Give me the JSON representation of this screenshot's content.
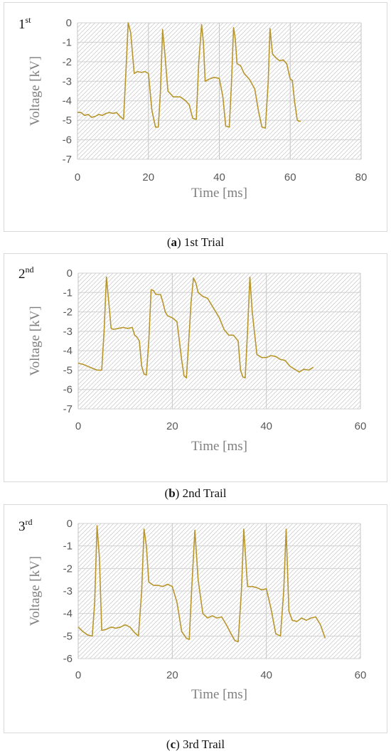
{
  "chart_data": [
    {
      "type": "line",
      "panel_label": "1",
      "panel_label_sup": "st",
      "xlabel": "Time [ms]",
      "ylabel": "Voltage [kV]",
      "xlim": [
        0,
        80
      ],
      "ylim": [
        -7,
        0
      ],
      "xticks": [
        "0",
        "20",
        "40",
        "60",
        "80"
      ],
      "yticks": [
        "0",
        "-1",
        "-2",
        "-3",
        "-4",
        "-5",
        "-6",
        "-7"
      ],
      "caption": {
        "letter": "a",
        "text": " 1st Trial"
      },
      "line_color": "#b8962c",
      "series": [
        {
          "x": [
            0,
            1,
            2,
            3,
            4,
            5,
            6,
            7,
            8,
            9,
            10,
            11,
            12,
            13,
            13.8,
            14.3,
            15,
            16,
            17,
            18,
            19,
            20,
            21,
            22,
            22.8,
            23.4,
            24,
            24.6,
            25.5,
            27,
            29,
            30.5,
            31.5,
            32.5,
            33.5,
            34.2,
            35,
            35.5,
            36,
            37,
            38.5,
            40,
            41,
            41.8,
            42.8,
            43.4,
            44,
            44.5,
            45,
            46,
            47,
            48.5,
            50,
            51,
            52,
            53,
            53.8,
            54.3,
            55,
            56,
            57,
            58,
            59,
            60,
            60.6,
            61.2,
            62,
            62.5,
            63
          ],
          "y": [
            -4.6,
            -4.6,
            -4.75,
            -4.7,
            -4.85,
            -4.8,
            -4.7,
            -4.75,
            -4.65,
            -4.6,
            -4.65,
            -4.6,
            -4.8,
            -4.95,
            -2.0,
            0,
            -0.5,
            -2.6,
            -2.5,
            -2.55,
            -2.5,
            -2.6,
            -4.5,
            -5.35,
            -5.35,
            -3.5,
            -0.35,
            -1.5,
            -3.5,
            -3.8,
            -3.8,
            -4.0,
            -4.2,
            -4.9,
            -4.95,
            -2.0,
            -0.1,
            -1.0,
            -3.0,
            -2.9,
            -2.8,
            -2.85,
            -3.8,
            -5.3,
            -5.35,
            -3.2,
            -0.25,
            -0.8,
            -2.1,
            -2.2,
            -2.6,
            -2.9,
            -3.4,
            -4.5,
            -5.35,
            -5.4,
            -3.0,
            -0.3,
            -1.6,
            -1.8,
            -1.95,
            -1.9,
            -2.1,
            -2.9,
            -2.95,
            -4.0,
            -5.0,
            -5.05,
            -5.05
          ]
        }
      ]
    },
    {
      "type": "line",
      "panel_label": "2",
      "panel_label_sup": "nd",
      "xlabel": "Time [ms]",
      "ylabel": "Voltage [kV]",
      "xlim": [
        0,
        60
      ],
      "ylim": [
        -7,
        0
      ],
      "xticks": [
        "0",
        "20",
        "40",
        "60"
      ],
      "yticks": [
        "0",
        "-1",
        "-2",
        "-3",
        "-4",
        "-5",
        "-6",
        "-7"
      ],
      "caption": {
        "letter": "b",
        "text": " 2nd Trail"
      },
      "line_color": "#b8962c",
      "series": [
        {
          "x": [
            0,
            1,
            2,
            3,
            4,
            5,
            5.5,
            6,
            6.5,
            7,
            7.5,
            8.5,
            9.5,
            10.5,
            11.5,
            12,
            12.5,
            13,
            13.5,
            14,
            14.5,
            15,
            15.5,
            16,
            16.5,
            17.5,
            18,
            18.5,
            19,
            20,
            21,
            21.5,
            22,
            22.5,
            23,
            23.5,
            24,
            24.5,
            25,
            25.5,
            26,
            26.5,
            27.5,
            28.5,
            29.5,
            30,
            31,
            32,
            33,
            34,
            34.5,
            35,
            35.5,
            36,
            36.5,
            37,
            38,
            39,
            40,
            41,
            42,
            43,
            44,
            45,
            46,
            47,
            48,
            49,
            50
          ],
          "y": [
            -4.65,
            -4.7,
            -4.8,
            -4.9,
            -5.0,
            -5.0,
            -3.0,
            -0.2,
            -1.5,
            -2.85,
            -2.9,
            -2.85,
            -2.8,
            -2.85,
            -2.8,
            -3.2,
            -3.3,
            -3.5,
            -4.8,
            -5.2,
            -5.25,
            -3.5,
            -0.85,
            -0.9,
            -1.1,
            -1.1,
            -1.5,
            -2.0,
            -2.2,
            -2.3,
            -2.5,
            -3.5,
            -4.5,
            -5.3,
            -5.4,
            -3.5,
            -1.5,
            -0.25,
            -0.5,
            -1.0,
            -1.1,
            -1.2,
            -1.3,
            -1.7,
            -2.1,
            -2.3,
            -2.9,
            -3.2,
            -3.2,
            -3.5,
            -5.0,
            -5.35,
            -5.4,
            -3.0,
            -0.2,
            -2.0,
            -4.2,
            -4.35,
            -4.35,
            -4.25,
            -4.3,
            -4.45,
            -4.5,
            -4.8,
            -4.95,
            -5.1,
            -4.95,
            -5.0,
            -4.85
          ]
        }
      ]
    },
    {
      "type": "line",
      "panel_label": "3",
      "panel_label_sup": "rd",
      "xlabel": "Time [ms]",
      "ylabel": "Voltage [kV]",
      "xlim": [
        0,
        60
      ],
      "ylim": [
        -6,
        0
      ],
      "xticks": [
        "0",
        "20",
        "40",
        "60"
      ],
      "yticks": [
        "0",
        "-1",
        "-2",
        "-3",
        "-4",
        "-5",
        "-6"
      ],
      "caption": {
        "letter": "c",
        "text": " 3rd Trail"
      },
      "line_color": "#b8962c",
      "series": [
        {
          "x": [
            0,
            1,
            2,
            3,
            3.5,
            4,
            4.5,
            5,
            6,
            7,
            8,
            9,
            10,
            11,
            12,
            12.8,
            13.5,
            14,
            14.5,
            15,
            16,
            17,
            18,
            19,
            20,
            21,
            22,
            23,
            23.6,
            24.1,
            24.8,
            25.5,
            26.5,
            27.5,
            28.5,
            29.5,
            30.5,
            31.5,
            32.5,
            33.3,
            34,
            34.7,
            35.2,
            36,
            37,
            38,
            39,
            40,
            41,
            42,
            43,
            43.7,
            44.2,
            44.8,
            45.5,
            46.5,
            47.5,
            48.5,
            49.5,
            50.5,
            51.5,
            52.5
          ],
          "y": [
            -4.6,
            -4.8,
            -4.95,
            -5.0,
            -3.5,
            -0.1,
            -1.5,
            -4.75,
            -4.7,
            -4.6,
            -4.65,
            -4.6,
            -4.5,
            -4.6,
            -4.85,
            -5.0,
            -3.0,
            -0.25,
            -1.0,
            -2.6,
            -2.75,
            -2.75,
            -2.8,
            -2.7,
            -2.8,
            -3.5,
            -4.8,
            -5.1,
            -5.15,
            -3.0,
            -0.3,
            -2.5,
            -4.0,
            -4.2,
            -4.1,
            -4.2,
            -4.15,
            -4.5,
            -4.9,
            -5.2,
            -5.25,
            -3.0,
            -0.25,
            -2.8,
            -2.8,
            -2.85,
            -2.95,
            -2.9,
            -3.8,
            -4.9,
            -5.0,
            -3.0,
            -0.25,
            -3.9,
            -4.3,
            -4.35,
            -4.2,
            -4.3,
            -4.2,
            -4.15,
            -4.5,
            -5.1
          ]
        }
      ]
    }
  ]
}
